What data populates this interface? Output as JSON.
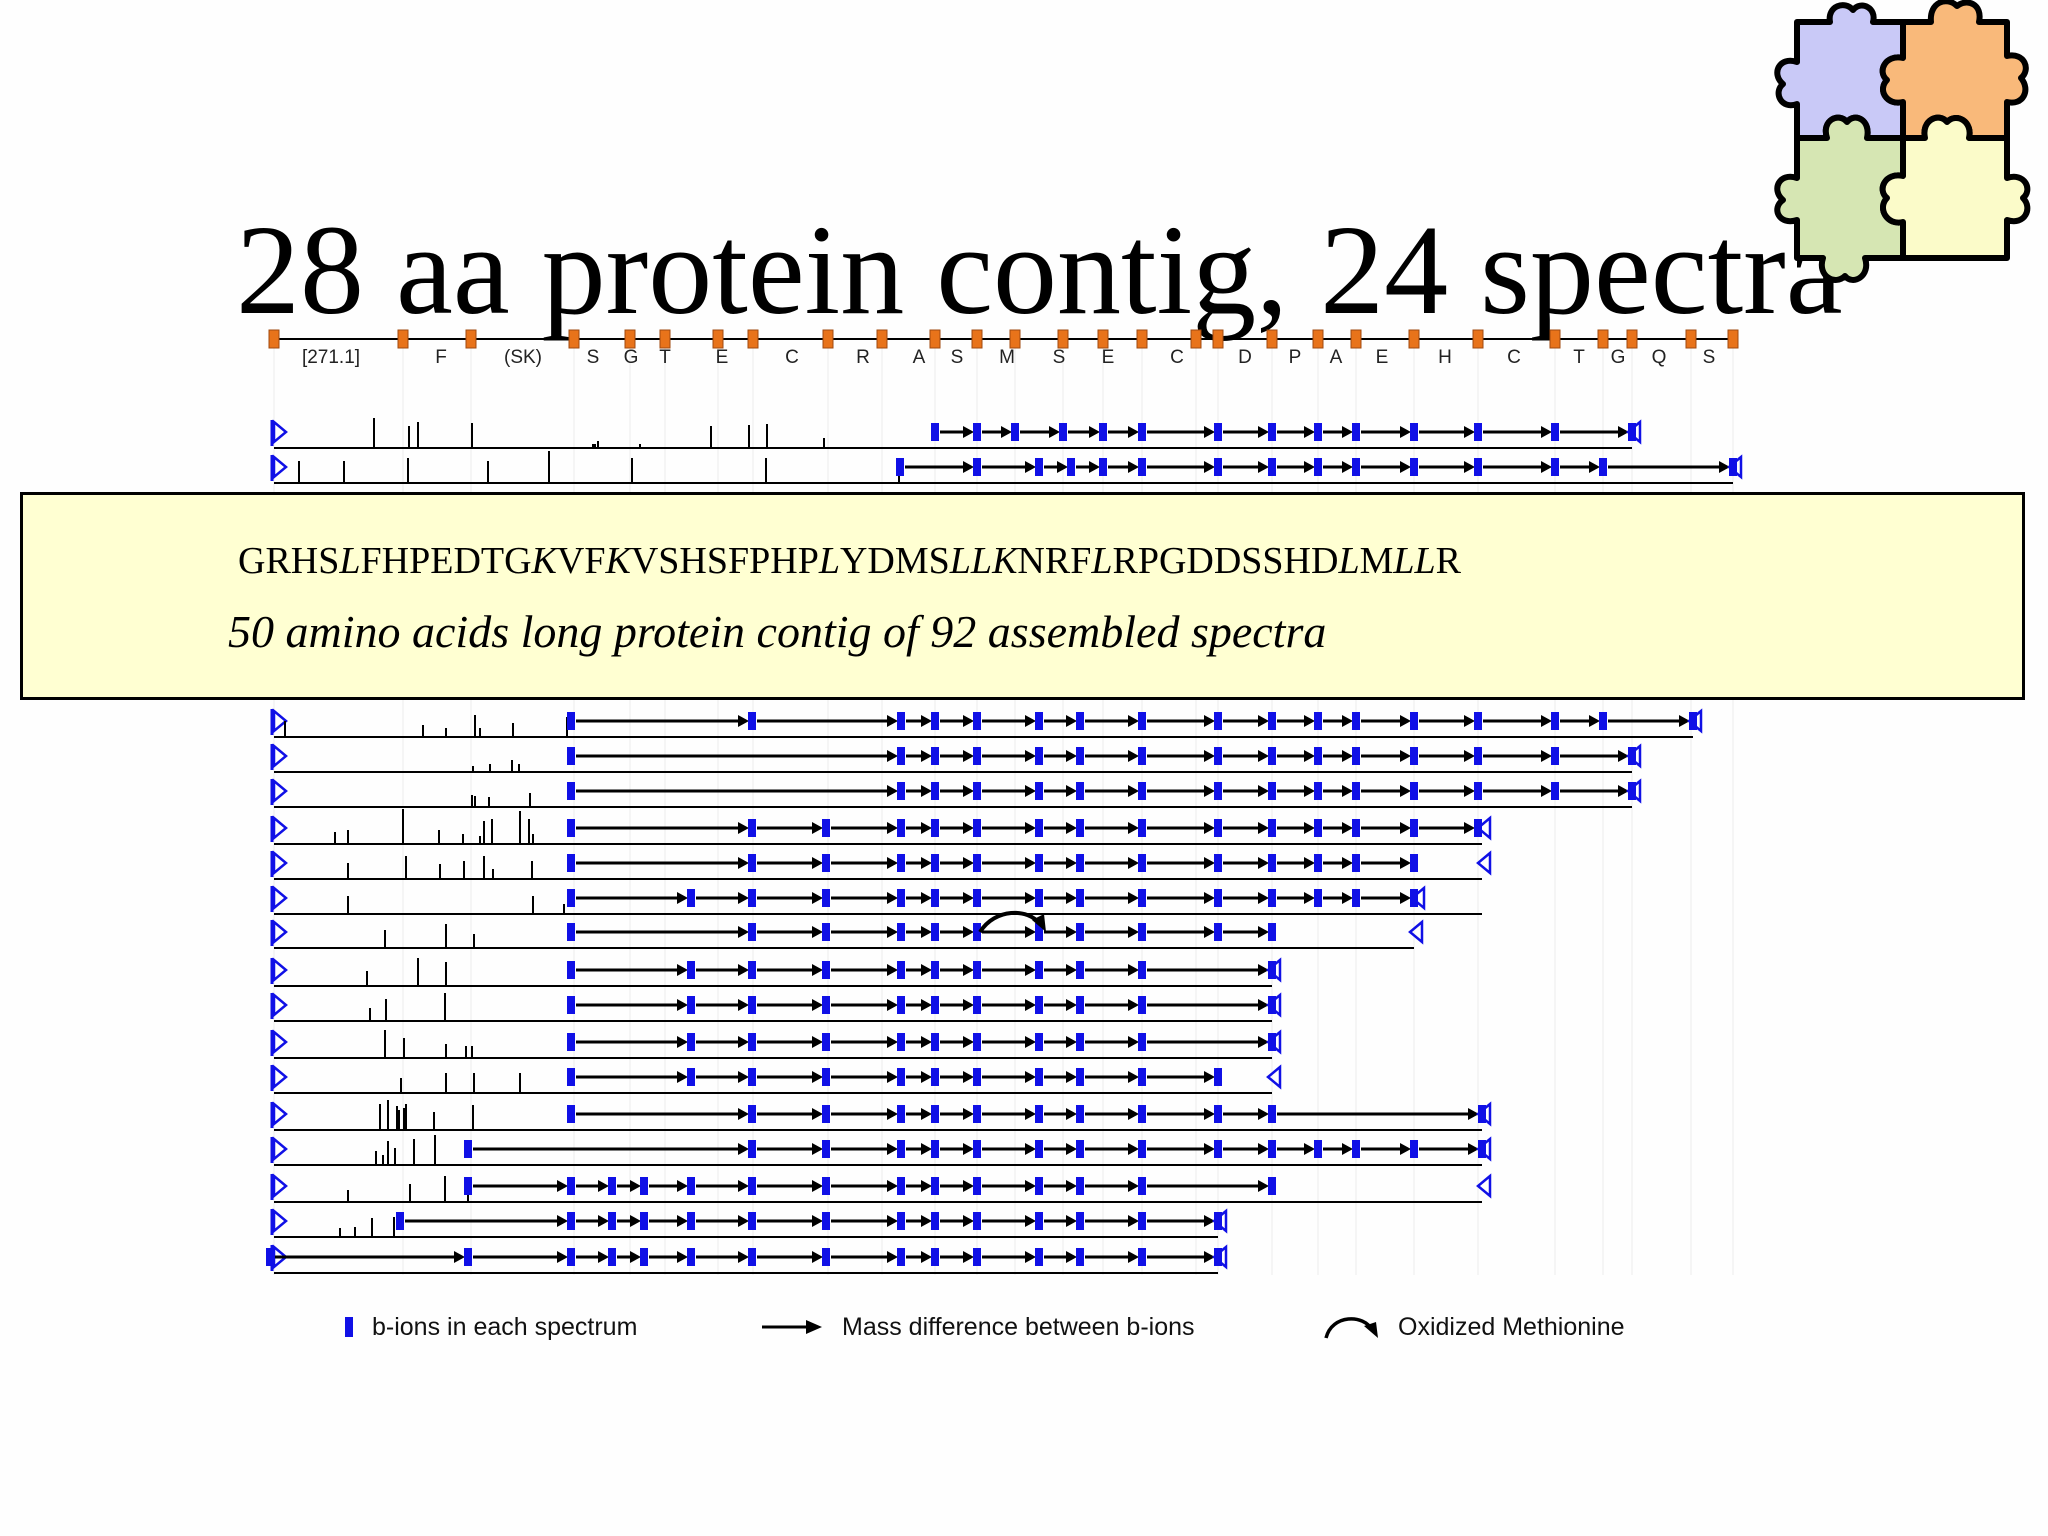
{
  "slide": {
    "title": "28 aa protein contig, 24 spectra"
  },
  "contig": {
    "residue_labels": [
      "[271.1]",
      "F",
      "(SK)",
      "S",
      "G",
      "T",
      "E",
      "C",
      "R",
      "A",
      "S",
      "M",
      "S",
      "E",
      "C",
      "D",
      "P",
      "A",
      "E",
      "H",
      "C",
      "T",
      "G",
      "Q",
      "S"
    ],
    "spectra_count": 24,
    "colors": {
      "b_ion": "#1010e6",
      "backbone_marker": "#e8731a",
      "arrow": "#000000"
    }
  },
  "callout": {
    "sequence_parts": [
      {
        "text": "GRHS",
        "italic": false
      },
      {
        "text": "L",
        "italic": true
      },
      {
        "text": "FHPEDTG",
        "italic": false
      },
      {
        "text": "K",
        "italic": true
      },
      {
        "text": "VF",
        "italic": false
      },
      {
        "text": "K",
        "italic": true
      },
      {
        "text": "VSHSFPHP",
        "italic": false
      },
      {
        "text": "L",
        "italic": true
      },
      {
        "text": "YDMS",
        "italic": false
      },
      {
        "text": "LLK",
        "italic": true
      },
      {
        "text": "NRF",
        "italic": false
      },
      {
        "text": "L",
        "italic": true
      },
      {
        "text": "RPGDDSSHD",
        "italic": false
      },
      {
        "text": "L",
        "italic": true
      },
      {
        "text": "M",
        "italic": false
      },
      {
        "text": "LL",
        "italic": true
      },
      {
        "text": "R",
        "italic": false
      }
    ],
    "caption": "50 amino acids long protein contig of 92 assembled spectra",
    "background": "#ffffd2"
  },
  "legend": {
    "b_ions": "b-ions in each spectrum",
    "mass_difference": "Mass difference between b-ions",
    "oxidized_met": "Oxidized Methionine"
  },
  "puzzle": {
    "icon": "puzzle-pieces-icon",
    "colors": [
      "#c9c9f7",
      "#f9b97a",
      "#d6e6b3",
      "#fbfbc9"
    ]
  }
}
